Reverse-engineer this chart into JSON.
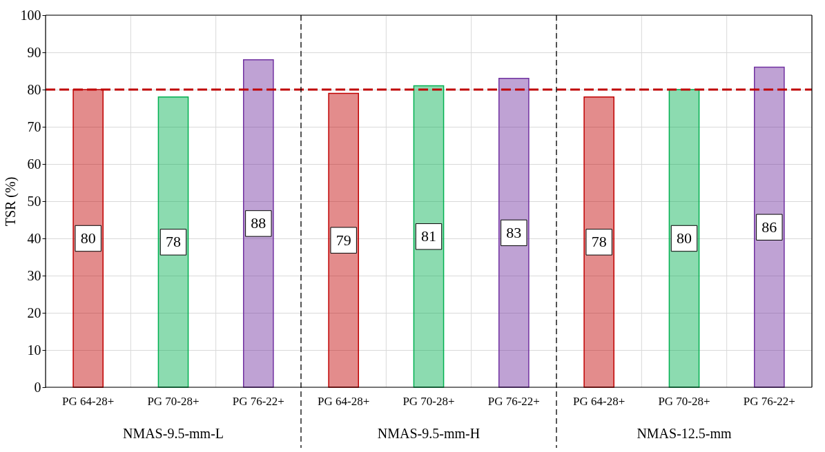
{
  "chart_data": {
    "type": "bar",
    "ylabel": "TSR (%)",
    "categories": [
      "PG 64-28+",
      "PG 70-28+",
      "PG 76-22+",
      "PG 64-28+",
      "PG 70-28+",
      "PG 76-22+",
      "PG 64-28+",
      "PG 70-28+",
      "PG 76-22+"
    ],
    "values": [
      80,
      78,
      88,
      79,
      81,
      83,
      78,
      80,
      86
    ],
    "colors": [
      "#c00000",
      "#00b050",
      "#7030a0",
      "#c00000",
      "#00b050",
      "#7030a0",
      "#c00000",
      "#00b050",
      "#7030a0"
    ],
    "ylim": [
      0,
      100
    ],
    "yticks": [
      0,
      10,
      20,
      30,
      40,
      50,
      60,
      70,
      80,
      90,
      100
    ],
    "grid": true,
    "data_labels": true,
    "ref_lines": [
      {
        "axis": "y",
        "value": 80,
        "color": "#c00000",
        "line_style": "dashed"
      }
    ],
    "annotations": [
      "NMAS-9.5-mm-L",
      "NMAS-9.5-mm-H",
      "NMAS-12.5-mm"
    ]
  }
}
